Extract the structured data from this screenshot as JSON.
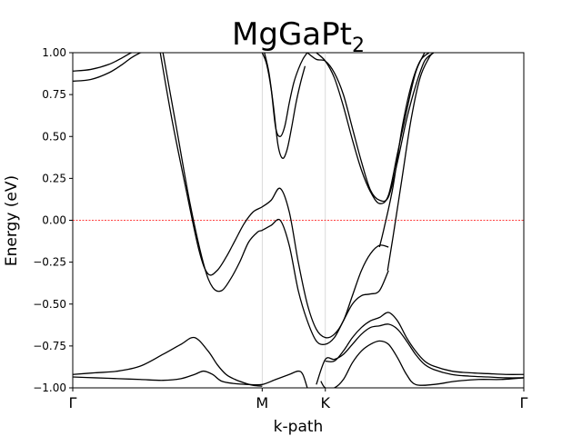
{
  "chart_data": {
    "type": "line",
    "title": "MgGaPt",
    "title_subscript": "2",
    "xlabel": "k-path",
    "ylabel": "Energy (eV)",
    "ylim": [
      -1.0,
      1.0
    ],
    "xlim": [
      0,
      1
    ],
    "yticks": [
      -1.0,
      -0.75,
      -0.5,
      -0.25,
      0.0,
      0.25,
      0.5,
      0.75,
      1.0
    ],
    "ytick_labels": [
      "−1.00",
      "−0.75",
      "−0.50",
      "−0.25",
      "0.00",
      "0.25",
      "0.50",
      "0.75",
      "1.00"
    ],
    "kpoints": [
      {
        "label": "Γ",
        "x": 0.0
      },
      {
        "label": "M",
        "x": 0.42
      },
      {
        "label": "K",
        "x": 0.56
      },
      {
        "label": "Γ",
        "x": 1.0
      }
    ],
    "fermi_level": 0.0,
    "fermi_color": "#ff0000",
    "band_color": "#000000",
    "grid": false,
    "series": [
      {
        "x": [
          0.0,
          0.04,
          0.08,
          0.11,
          0.13,
          0.138
        ],
        "y": [
          0.89,
          0.9,
          0.93,
          0.97,
          1.0,
          1.0
        ]
      },
      {
        "x": [
          0.0,
          0.04,
          0.08,
          0.11,
          0.13,
          0.15,
          0.153
        ],
        "y": [
          0.83,
          0.84,
          0.88,
          0.93,
          0.97,
          1.0,
          1.0
        ]
      },
      {
        "x": [
          0.194,
          0.22,
          0.25,
          0.28,
          0.3,
          0.32,
          0.34,
          0.36,
          0.38,
          0.4,
          0.42,
          0.44,
          0.46,
          0.48,
          0.5,
          0.52,
          0.54,
          0.56,
          0.58,
          0.6,
          0.62,
          0.64,
          0.66,
          0.68,
          0.7
        ],
        "y": [
          1.0,
          0.6,
          0.2,
          -0.18,
          -0.32,
          -0.3,
          -0.22,
          -0.12,
          -0.02,
          0.05,
          0.08,
          0.12,
          0.19,
          0.05,
          -0.25,
          -0.5,
          -0.65,
          -0.7,
          -0.68,
          -0.6,
          -0.45,
          -0.3,
          -0.2,
          -0.15,
          -0.16
        ]
      },
      {
        "x": [
          0.2,
          0.23,
          0.26,
          0.29,
          0.31,
          0.33,
          0.35,
          0.37,
          0.39,
          0.41,
          0.42,
          0.44,
          0.46,
          0.48,
          0.5,
          0.52,
          0.54,
          0.56,
          0.58,
          0.6,
          0.62,
          0.64,
          0.66,
          0.68,
          0.7
        ],
        "y": [
          1.0,
          0.55,
          0.1,
          -0.26,
          -0.4,
          -0.42,
          -0.35,
          -0.25,
          -0.13,
          -0.07,
          -0.06,
          -0.03,
          0.0,
          -0.15,
          -0.42,
          -0.6,
          -0.72,
          -0.74,
          -0.7,
          -0.6,
          -0.5,
          -0.45,
          -0.44,
          -0.42,
          -0.3
        ]
      },
      {
        "x": [
          0.698,
          0.71,
          0.73,
          0.75,
          0.77,
          0.79,
          0.8
        ],
        "y": [
          -0.3,
          -0.1,
          0.25,
          0.6,
          0.85,
          0.97,
          1.0
        ]
      },
      {
        "x": [
          0.68,
          0.69,
          0.71,
          0.73,
          0.75,
          0.77,
          0.79
        ],
        "y": [
          -0.16,
          -0.05,
          0.2,
          0.55,
          0.8,
          0.95,
          1.0
        ]
      },
      {
        "x": [
          0.42,
          0.43,
          0.44,
          0.45,
          0.46,
          0.47,
          0.48,
          0.49,
          0.5,
          0.51,
          0.52
        ],
        "y": [
          1.0,
          0.93,
          0.78,
          0.55,
          0.5,
          0.56,
          0.7,
          0.82,
          0.9,
          0.96,
          1.0
        ]
      },
      {
        "x": [
          0.425,
          0.435,
          0.445,
          0.455,
          0.465,
          0.475,
          0.485,
          0.495,
          0.505,
          0.515
        ],
        "y": [
          1.0,
          0.88,
          0.68,
          0.45,
          0.37,
          0.42,
          0.55,
          0.7,
          0.82,
          0.92
        ]
      },
      {
        "x": [
          0.52,
          0.54,
          0.56,
          0.58,
          0.6,
          0.62,
          0.64,
          0.66,
          0.68,
          0.7,
          0.72,
          0.74,
          0.76,
          0.78,
          0.8
        ],
        "y": [
          1.0,
          0.96,
          0.95,
          0.88,
          0.75,
          0.55,
          0.35,
          0.18,
          0.12,
          0.14,
          0.35,
          0.6,
          0.8,
          0.95,
          1.0
        ]
      },
      {
        "x": [
          0.54,
          0.56,
          0.58,
          0.6,
          0.62,
          0.64,
          0.66,
          0.68,
          0.7,
          0.72,
          0.74,
          0.76,
          0.78
        ],
        "y": [
          1.0,
          0.95,
          0.85,
          0.68,
          0.48,
          0.3,
          0.17,
          0.1,
          0.15,
          0.4,
          0.65,
          0.88,
          1.0
        ]
      },
      {
        "x": [
          0.0,
          0.05,
          0.1,
          0.15,
          0.2,
          0.24,
          0.27,
          0.3,
          0.32,
          0.34,
          0.36,
          0.38,
          0.4,
          0.42
        ],
        "y": [
          -0.92,
          -0.91,
          -0.9,
          -0.87,
          -0.8,
          -0.74,
          -0.7,
          -0.78,
          -0.86,
          -0.92,
          -0.95,
          -0.97,
          -0.985,
          -0.99
        ]
      },
      {
        "x": [
          0.0,
          0.05,
          0.1,
          0.15,
          0.2,
          0.24,
          0.27,
          0.29,
          0.31,
          0.33,
          0.36,
          0.39,
          0.42,
          0.45,
          0.48,
          0.5,
          0.51,
          0.52
        ],
        "y": [
          -0.935,
          -0.94,
          -0.945,
          -0.95,
          -0.955,
          -0.945,
          -0.92,
          -0.9,
          -0.92,
          -0.96,
          -0.975,
          -0.98,
          -0.98,
          -0.95,
          -0.92,
          -0.9,
          -0.92,
          -1.0
        ]
      },
      {
        "x": [
          0.56,
          0.58,
          0.6,
          0.62,
          0.64,
          0.66,
          0.68,
          0.7,
          0.72,
          0.74,
          0.76,
          0.78,
          0.8,
          0.84,
          0.88,
          0.92,
          0.96,
          1.0
        ],
        "y": [
          -0.84,
          -0.84,
          -0.78,
          -0.7,
          -0.64,
          -0.6,
          -0.58,
          -0.55,
          -0.6,
          -0.7,
          -0.78,
          -0.84,
          -0.87,
          -0.9,
          -0.91,
          -0.915,
          -0.92,
          -0.92
        ]
      },
      {
        "x": [
          0.54,
          0.56,
          0.58,
          0.6,
          0.62,
          0.64,
          0.66,
          0.68,
          0.7,
          0.72,
          0.74,
          0.76,
          0.78,
          0.8,
          0.84,
          0.88,
          0.92,
          0.96,
          1.0
        ],
        "y": [
          -0.98,
          -0.83,
          -0.83,
          -0.8,
          -0.74,
          -0.68,
          -0.64,
          -0.63,
          -0.62,
          -0.65,
          -0.72,
          -0.8,
          -0.86,
          -0.89,
          -0.92,
          -0.93,
          -0.935,
          -0.94,
          -0.94
        ]
      },
      {
        "x": [
          0.55,
          0.56,
          0.58,
          0.6,
          0.62,
          0.64,
          0.66,
          0.68,
          0.7,
          0.72,
          0.74,
          0.76,
          0.8,
          0.85,
          0.9,
          0.95,
          1.0
        ],
        "y": [
          -0.96,
          -1.0,
          -1.0,
          -0.95,
          -0.85,
          -0.78,
          -0.74,
          -0.72,
          -0.74,
          -0.82,
          -0.92,
          -0.98,
          -0.98,
          -0.96,
          -0.95,
          -0.95,
          -0.94
        ]
      }
    ]
  }
}
